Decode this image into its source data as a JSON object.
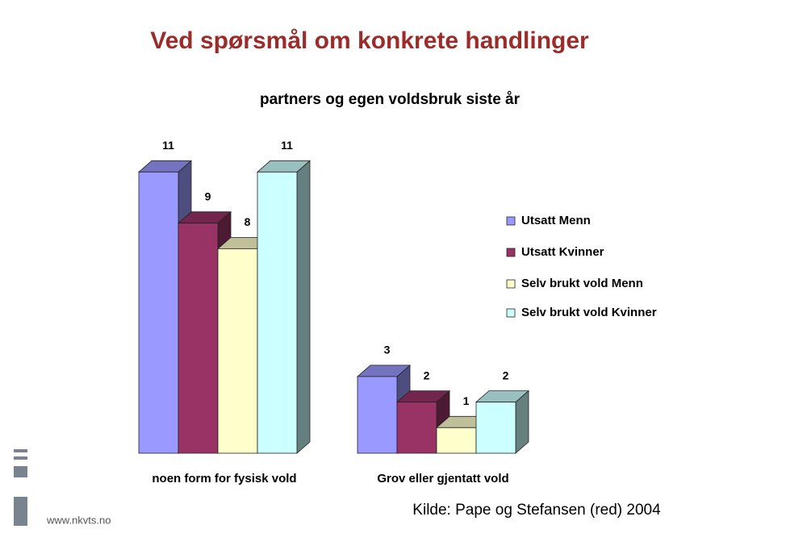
{
  "chart_data": {
    "type": "bar3d",
    "title": "Ved spørsmål om konkrete handlinger",
    "subtitle": "partners og egen voldsbruk siste år",
    "categories": [
      "noen form for fysisk vold",
      "Grov eller gjentatt vold"
    ],
    "series": [
      {
        "name": "Utsatt Menn",
        "color": "#9999ff",
        "values": [
          11,
          3
        ]
      },
      {
        "name": "Utsatt Kvinner",
        "color": "#993366",
        "values": [
          9,
          2
        ]
      },
      {
        "name": "Selv brukt vold Menn",
        "color": "#ffffcc",
        "values": [
          8,
          1
        ]
      },
      {
        "name": "Selv brukt vold Kvinner",
        "color": "#ccffff",
        "values": [
          11,
          2
        ]
      }
    ],
    "legend": "right",
    "source": "Kilde: Pape og Stefansen (red) 2004"
  },
  "footer": {
    "url": "www.nkvts.no"
  }
}
